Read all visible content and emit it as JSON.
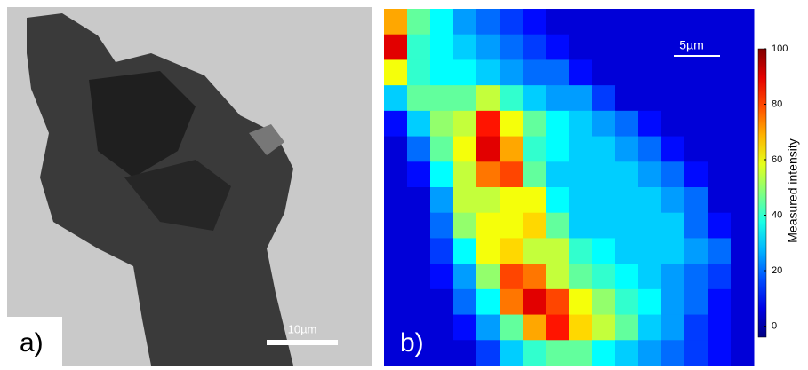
{
  "panel_a": {
    "label": "a)",
    "scale_bar": "10µm"
  },
  "chart_data": {
    "type": "heatmap",
    "label": "b)",
    "scale_bar": "5µm",
    "colorbar_label": "Measured intensity",
    "clim": [
      -4,
      100
    ],
    "cticks": [
      0,
      20,
      40,
      60,
      80,
      100
    ],
    "values": [
      [
        70,
        45,
        35,
        25,
        20,
        15,
        10,
        5,
        5,
        5,
        5,
        5,
        5,
        5,
        5,
        5
      ],
      [
        90,
        40,
        35,
        30,
        25,
        20,
        15,
        10,
        5,
        5,
        5,
        5,
        5,
        5,
        5,
        5
      ],
      [
        60,
        40,
        35,
        35,
        30,
        25,
        20,
        20,
        10,
        5,
        5,
        5,
        5,
        5,
        5,
        5
      ],
      [
        30,
        45,
        45,
        45,
        55,
        40,
        30,
        25,
        25,
        15,
        5,
        5,
        5,
        5,
        5,
        5
      ],
      [
        10,
        30,
        50,
        55,
        85,
        60,
        45,
        35,
        30,
        25,
        20,
        10,
        5,
        5,
        5,
        5
      ],
      [
        5,
        20,
        45,
        60,
        90,
        70,
        40,
        35,
        30,
        30,
        25,
        20,
        10,
        5,
        5,
        5
      ],
      [
        5,
        10,
        35,
        55,
        75,
        80,
        45,
        30,
        30,
        30,
        30,
        25,
        20,
        10,
        5,
        5
      ],
      [
        5,
        5,
        25,
        55,
        55,
        60,
        60,
        35,
        30,
        30,
        30,
        30,
        25,
        20,
        5,
        5
      ],
      [
        5,
        5,
        20,
        50,
        60,
        60,
        65,
        45,
        30,
        30,
        30,
        30,
        30,
        20,
        10,
        5
      ],
      [
        5,
        5,
        15,
        35,
        60,
        65,
        55,
        55,
        40,
        35,
        30,
        30,
        30,
        25,
        20,
        5
      ],
      [
        5,
        5,
        10,
        25,
        50,
        80,
        75,
        55,
        45,
        40,
        35,
        30,
        25,
        20,
        15,
        5
      ],
      [
        5,
        5,
        5,
        20,
        35,
        75,
        90,
        80,
        60,
        50,
        40,
        35,
        25,
        20,
        10,
        5
      ],
      [
        5,
        5,
        5,
        10,
        25,
        45,
        70,
        85,
        65,
        55,
        45,
        30,
        25,
        15,
        10,
        5
      ],
      [
        5,
        5,
        5,
        5,
        15,
        30,
        40,
        45,
        45,
        35,
        30,
        25,
        20,
        15,
        10,
        5
      ]
    ]
  }
}
